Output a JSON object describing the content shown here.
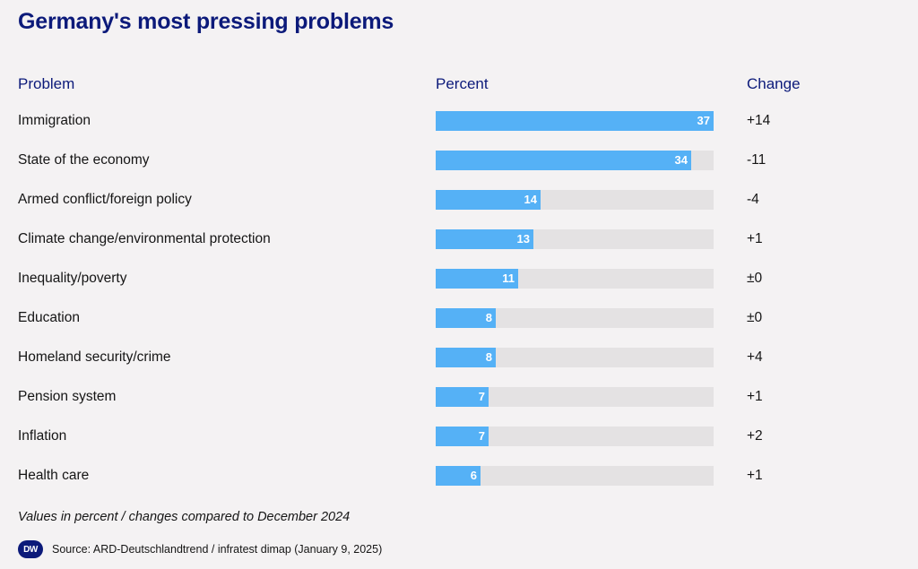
{
  "header": {
    "title": "Germany's most pressing problems"
  },
  "columns": {
    "problem": "Problem",
    "percent": "Percent",
    "change": "Change"
  },
  "chart_data": {
    "type": "bar",
    "title": "Germany's most pressing problems",
    "xlabel": "Percent",
    "ylabel": "Problem",
    "xlim": [
      0,
      37
    ],
    "categories": [
      "Immigration",
      "State of the economy",
      "Armed conflict/foreign policy",
      "Climate change/environmental protection",
      "Inequality/poverty",
      "Education",
      "Homeland security/crime",
      "Pension system",
      "Inflation",
      "Health care"
    ],
    "values": [
      37,
      34,
      14,
      13,
      11,
      8,
      8,
      7,
      7,
      6
    ],
    "changes": [
      "+14",
      "-11",
      "-4",
      "+1",
      "±0",
      "±0",
      "+4",
      "+1",
      "+2",
      "+1"
    ],
    "colors": {
      "bar": "#55b1f6",
      "track": "#e4e2e3",
      "title": "#0c1a7a"
    }
  },
  "footer": {
    "note": "Values in percent / changes compared to December 2024",
    "logo": "DW",
    "source": "Source: ARD-Deutschlandtrend / infratest dimap (January 9, 2025)"
  }
}
